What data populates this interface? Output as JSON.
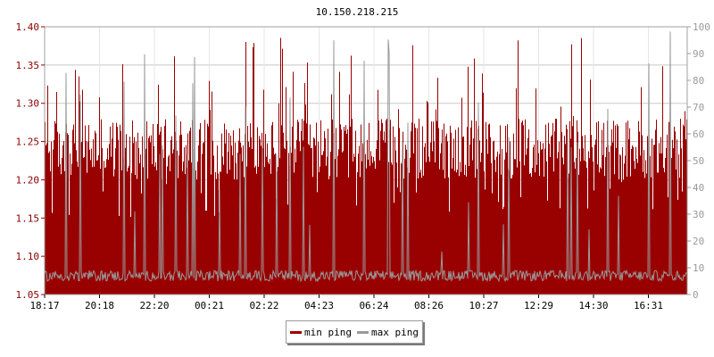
{
  "chart_data": {
    "type": "area",
    "title": "10.150.218.215",
    "xlabel": "",
    "ylabel": "",
    "x_ticks": [
      "18:17",
      "20:18",
      "22:20",
      "00:21",
      "02:22",
      "04:23",
      "06:24",
      "08:26",
      "10:27",
      "12:29",
      "14:30",
      "16:31"
    ],
    "y_left": {
      "lim": [
        1.05,
        1.4
      ],
      "ticks": [
        "1.05",
        "1.10",
        "1.15",
        "1.20",
        "1.25",
        "1.30",
        "1.35",
        "1.40"
      ]
    },
    "y_right": {
      "lim": [
        0,
        100
      ],
      "ticks": [
        "0",
        "10",
        "20",
        "30",
        "40",
        "50",
        "60",
        "70",
        "80",
        "90",
        "100"
      ]
    },
    "grid": true,
    "legend_position": "bottom-center",
    "series": [
      {
        "name": "min ping",
        "axis": "left",
        "color": "#990000",
        "typical_range": [
          1.2,
          1.28
        ],
        "peak": 1.39
      },
      {
        "name": "max ping",
        "axis": "right",
        "color": "#999999",
        "baseline": 7,
        "spikes_up_to": 99
      }
    ]
  }
}
